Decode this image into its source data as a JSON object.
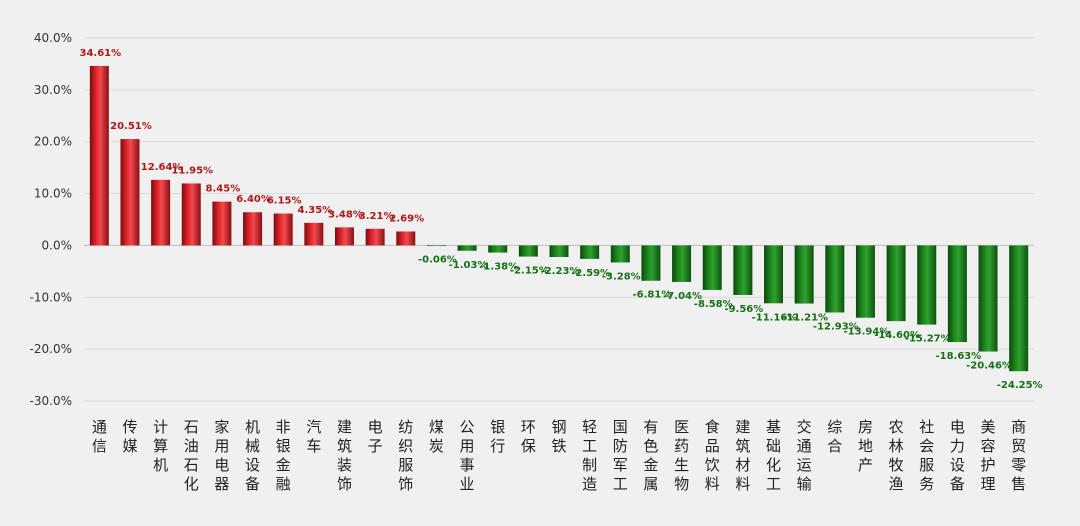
{
  "colors": {
    "background": "#f0f0f0",
    "positive_bar": "#c8161d",
    "positive_label": "#b01818",
    "negative_bar": "#1d7a1d",
    "negative_label": "#167016",
    "gridline": "#d9d9d9",
    "zero_line": "#bfbfbf"
  },
  "chart_data": {
    "type": "bar",
    "title": "",
    "xlabel": "",
    "ylabel": "",
    "ylim": [
      -30,
      40
    ],
    "yticks": [
      40,
      30,
      20,
      10,
      0,
      -10,
      -20,
      -30
    ],
    "ytick_labels": [
      "40.0%",
      "30.0%",
      "20.0%",
      "10.0%",
      "0.0%",
      "-10.0%",
      "-20.0%",
      "-30.0%"
    ],
    "grid": true,
    "legend": "none",
    "categories": [
      "通信",
      "传媒",
      "计算机",
      "石油石化",
      "家用电器",
      "机械设备",
      "非银金融",
      "汽车",
      "建筑装饰",
      "电子",
      "纺织服饰",
      "煤炭",
      "公用事业",
      "银行",
      "环保",
      "钢铁",
      "轻工制造",
      "国防军工",
      "有色金属",
      "医药生物",
      "食品饮料",
      "建筑材料",
      "基础化工",
      "交通运输",
      "综合",
      "房地产",
      "农林牧渔",
      "社会服务",
      "电力设备",
      "美容护理",
      "商贸零售"
    ],
    "values": [
      34.61,
      20.51,
      12.64,
      11.95,
      8.45,
      6.4,
      6.15,
      4.35,
      3.48,
      3.21,
      2.69,
      -0.06,
      -1.03,
      -1.38,
      -2.15,
      -2.23,
      -2.59,
      -3.28,
      -6.81,
      -7.04,
      -8.58,
      -9.56,
      -11.16,
      -11.21,
      -12.93,
      -13.94,
      -14.6,
      -15.27,
      -18.63,
      -20.46,
      -24.25
    ],
    "data_labels": [
      "34.61%",
      "20.51%",
      "12.64%",
      "11.95%",
      "8.45%",
      "6.40%",
      "6.15%",
      "4.35%",
      "3.48%",
      "3.21%",
      "2.69%",
      "-0.06%",
      "-1.03%",
      "-1.38%",
      "-2.15%",
      "-2.23%",
      "-2.59%",
      "-3.28%",
      "-6.81%",
      "-7.04%",
      "-8.58%",
      "-9.56%",
      "-11.16%",
      "-11.21%",
      "-12.93%",
      "-13.94%",
      "-14.60%",
      "-15.27%",
      "-18.63%",
      "-20.46%",
      "-24.25%"
    ]
  }
}
